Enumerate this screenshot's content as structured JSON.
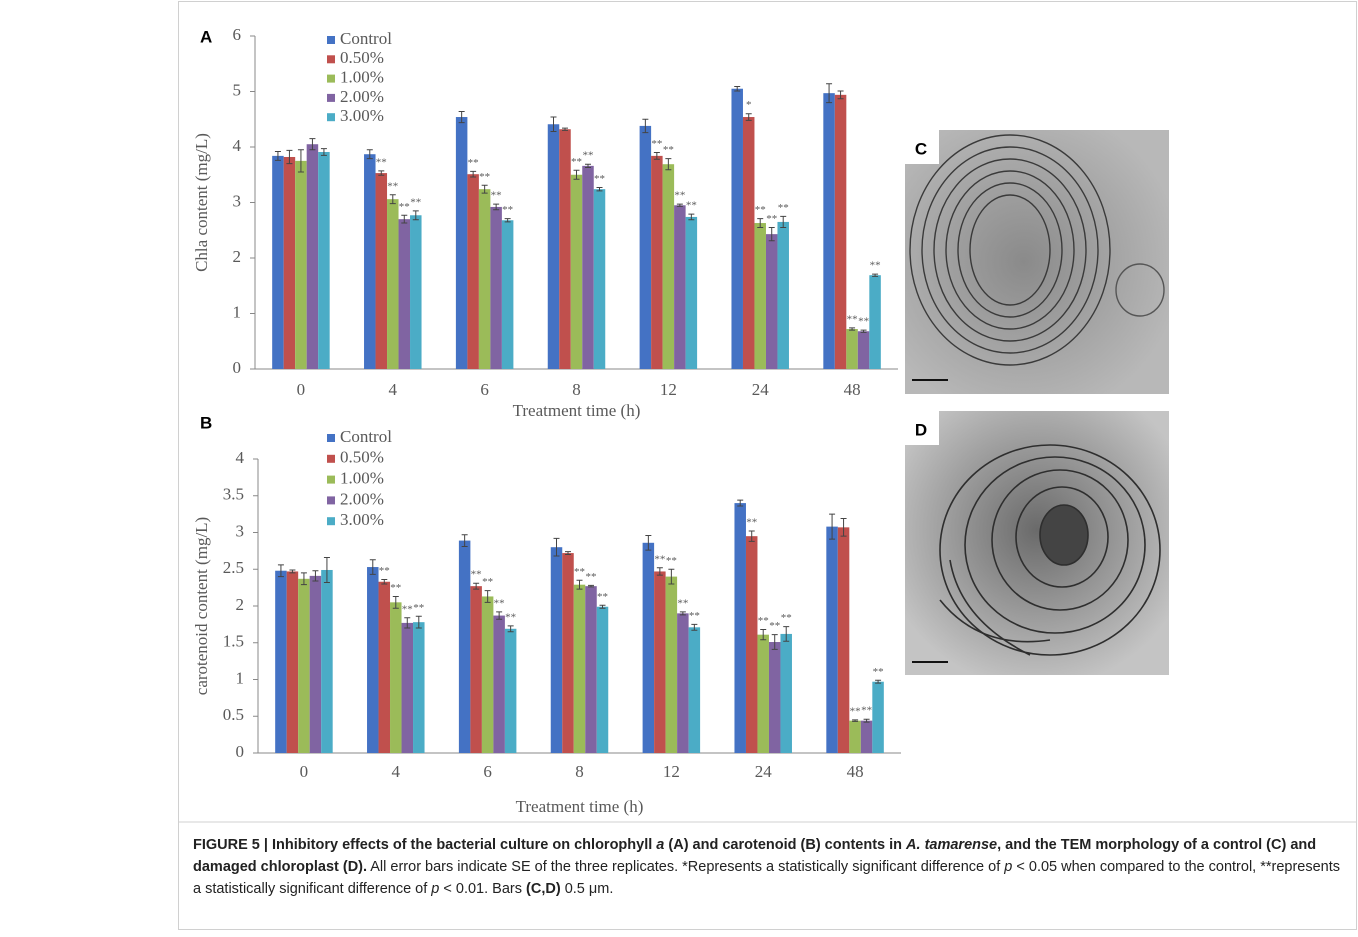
{
  "chart_data": [
    {
      "type": "bar",
      "panel": "A",
      "y_label": "Chla content (mg/L)",
      "x_label": "Treatment time (h)",
      "categories": [
        "0",
        "4",
        "6",
        "8",
        "12",
        "24",
        "48"
      ],
      "ylim": [
        0,
        6
      ],
      "yticks": [
        0,
        1,
        2,
        3,
        4,
        5,
        6
      ],
      "series": [
        {
          "name": "Control",
          "color": "#4472c4",
          "values": [
            3.84,
            3.87,
            4.54,
            4.41,
            4.38,
            5.05,
            4.97
          ],
          "errors": [
            0.08,
            0.08,
            0.1,
            0.13,
            0.12,
            0.04,
            0.17
          ],
          "significance": [
            null,
            null,
            null,
            null,
            null,
            null,
            null
          ]
        },
        {
          "name": "0.50%",
          "color": "#c0504d",
          "values": [
            3.82,
            3.53,
            3.51,
            4.32,
            3.84,
            4.54,
            4.94
          ],
          "errors": [
            0.12,
            0.04,
            0.05,
            0.02,
            0.06,
            0.06,
            0.07
          ],
          "significance": [
            null,
            "**",
            "**",
            null,
            "**",
            "*",
            null
          ]
        },
        {
          "name": "1.00%",
          "color": "#9bbb59",
          "values": [
            3.75,
            3.06,
            3.24,
            3.5,
            3.69,
            2.63,
            0.72
          ],
          "errors": [
            0.2,
            0.08,
            0.07,
            0.08,
            0.1,
            0.08,
            0.02
          ],
          "significance": [
            null,
            "**",
            "**",
            "**",
            "**",
            "**",
            "**"
          ]
        },
        {
          "name": "2.00%",
          "color": "#8064a2",
          "values": [
            4.05,
            2.7,
            2.92,
            3.66,
            2.95,
            2.43,
            0.68
          ],
          "errors": [
            0.1,
            0.07,
            0.05,
            0.03,
            0.02,
            0.12,
            0.02
          ],
          "significance": [
            null,
            "**",
            "**",
            "**",
            "**",
            "**",
            "**"
          ]
        },
        {
          "name": "3.00%",
          "color": "#4bacc6",
          "values": [
            3.91,
            2.77,
            2.68,
            3.24,
            2.74,
            2.65,
            1.69
          ],
          "errors": [
            0.06,
            0.08,
            0.03,
            0.03,
            0.05,
            0.1,
            0.02
          ],
          "significance": [
            null,
            "**",
            "**",
            "**",
            "**",
            "**",
            "**"
          ]
        }
      ]
    },
    {
      "type": "bar",
      "panel": "B",
      "y_label": "carotenoid content (mg/L)",
      "x_label": "Treatment time (h)",
      "categories": [
        "0",
        "4",
        "6",
        "8",
        "12",
        "24",
        "48"
      ],
      "ylim": [
        0,
        4
      ],
      "yticks": [
        0,
        0.5,
        1,
        1.5,
        2,
        2.5,
        3,
        3.5,
        4
      ],
      "series": [
        {
          "name": "Control",
          "color": "#4472c4",
          "values": [
            2.48,
            2.53,
            2.89,
            2.8,
            2.86,
            3.4,
            3.08
          ],
          "errors": [
            0.08,
            0.1,
            0.08,
            0.12,
            0.1,
            0.04,
            0.17
          ],
          "significance": [
            null,
            null,
            null,
            null,
            null,
            null,
            null
          ]
        },
        {
          "name": "0.50%",
          "color": "#c0504d",
          "values": [
            2.47,
            2.33,
            2.27,
            2.72,
            2.47,
            2.95,
            3.07
          ],
          "errors": [
            0.02,
            0.03,
            0.04,
            0.02,
            0.05,
            0.07,
            0.12
          ],
          "significance": [
            null,
            "**",
            "**",
            null,
            "**",
            "**",
            null
          ]
        },
        {
          "name": "1.00%",
          "color": "#9bbb59",
          "values": [
            2.37,
            2.05,
            2.13,
            2.29,
            2.4,
            1.61,
            0.44
          ],
          "errors": [
            0.08,
            0.08,
            0.08,
            0.06,
            0.1,
            0.07,
            0.01
          ],
          "significance": [
            null,
            "**",
            "**",
            "**",
            "**",
            "**",
            "**"
          ]
        },
        {
          "name": "2.00%",
          "color": "#8064a2",
          "values": [
            2.41,
            1.77,
            1.87,
            2.27,
            1.9,
            1.51,
            0.44
          ],
          "errors": [
            0.07,
            0.07,
            0.05,
            0.01,
            0.02,
            0.1,
            0.02
          ],
          "significance": [
            null,
            "**",
            "**",
            "**",
            "**",
            "**",
            "**"
          ]
        },
        {
          "name": "3.00%",
          "color": "#4bacc6",
          "values": [
            2.49,
            1.78,
            1.69,
            1.99,
            1.71,
            1.62,
            0.97
          ],
          "errors": [
            0.17,
            0.08,
            0.04,
            0.02,
            0.04,
            0.1,
            0.02
          ],
          "significance": [
            null,
            "**",
            "**",
            "**",
            "**",
            "**",
            "**"
          ]
        }
      ]
    }
  ],
  "images": [
    {
      "label": "C"
    },
    {
      "label": "D"
    }
  ],
  "caption": [
    {
      "text": "FIGURE 5 | Inhibitory effects of the bacterial culture on chlorophyll ",
      "style": "bold"
    },
    {
      "text": "a",
      "style": "bold-italic"
    },
    {
      "text": " (A) and carotenoid (B) contents in ",
      "style": "bold"
    },
    {
      "text": "A. tamarense",
      "style": "bold-italic"
    },
    {
      "text": ", and the TEM morphology of a control (C) and damaged chloroplast (D).",
      "style": "bold"
    },
    {
      "text": " All error bars indicate SE of the three replicates. *Represents a statistically significant difference of ",
      "style": "normal"
    },
    {
      "text": "p",
      "style": "italic"
    },
    {
      "text": " < 0.05 when compared to the control, **represents a statistically significant difference of ",
      "style": "normal"
    },
    {
      "text": "p",
      "style": "italic"
    },
    {
      "text": " < 0.01. Bars ",
      "style": "normal"
    },
    {
      "text": "(C,D)",
      "style": "bold"
    },
    {
      "text": " 0.5 μm.",
      "style": "normal"
    }
  ]
}
